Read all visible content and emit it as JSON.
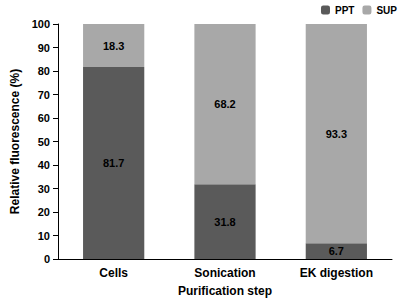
{
  "chart_data": {
    "type": "bar",
    "stacked": true,
    "data_labels": true,
    "legend": "upper right",
    "grid": false,
    "xlabel": "Purification step",
    "ylabel": "Relative fluorescence (%)",
    "categories": [
      "Cells",
      "Sonication",
      "EK digestion"
    ],
    "series": [
      {
        "name": "PPT",
        "color": "#5a5a5a",
        "values": [
          81.7,
          31.8,
          6.7
        ]
      },
      {
        "name": "SUP",
        "color": "#a8a8a8",
        "values": [
          18.3,
          68.2,
          93.3
        ]
      }
    ],
    "ylim": [
      0,
      100
    ],
    "yticks": [
      0,
      10,
      20,
      30,
      40,
      50,
      60,
      70,
      80,
      90,
      100
    ]
  }
}
